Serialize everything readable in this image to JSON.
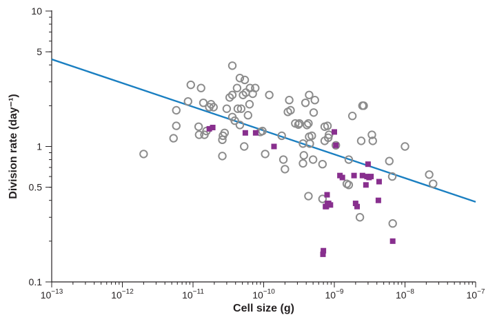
{
  "chart_data": {
    "type": "scatter",
    "title": "",
    "xlabel": "Cell size (g)",
    "ylabel": "Division rate (day⁻¹)",
    "xscale": "log",
    "yscale": "log",
    "xlim": [
      1e-13,
      1e-07
    ],
    "ylim": [
      0.1,
      10
    ],
    "grid": false,
    "legend": "none",
    "x_ticks": [
      {
        "value": 1e-13,
        "base": "10",
        "exp": "−13"
      },
      {
        "value": 1e-12,
        "base": "10",
        "exp": "−12"
      },
      {
        "value": 1e-11,
        "base": "10",
        "exp": "−11"
      },
      {
        "value": 1e-10,
        "base": "10",
        "exp": "−10"
      },
      {
        "value": 1e-09,
        "base": "10",
        "exp": "−9"
      },
      {
        "value": 1e-08,
        "base": "10",
        "exp": "−8"
      },
      {
        "value": 1e-07,
        "base": "10",
        "exp": "−7"
      }
    ],
    "y_ticks": [
      {
        "value": 0.1,
        "label": "0.1"
      },
      {
        "value": 0.5,
        "label": "0.5"
      },
      {
        "value": 1,
        "label": "1"
      },
      {
        "value": 5,
        "label": "5"
      },
      {
        "value": 10,
        "label": "10"
      }
    ],
    "series": [
      {
        "marker": "open-circle",
        "color": "#8c8c8c",
        "points": [
          [
            2e-12,
            0.88
          ],
          [
            5.3e-12,
            1.15
          ],
          [
            5.8e-12,
            1.42
          ],
          [
            5.8e-12,
            1.85
          ],
          [
            8.5e-12,
            2.15
          ],
          [
            9.3e-12,
            2.85
          ],
          [
            1.2e-11,
            1.4
          ],
          [
            1.22e-11,
            1.22
          ],
          [
            1.3e-11,
            2.7
          ],
          [
            1.4e-11,
            2.1
          ],
          [
            1.45e-11,
            1.22
          ],
          [
            1.55e-11,
            1.3
          ],
          [
            1.7e-11,
            1.95
          ],
          [
            1.8e-11,
            2.05
          ],
          [
            1.95e-11,
            1.95
          ],
          [
            2.6e-11,
            0.85
          ],
          [
            2.6e-11,
            1.12
          ],
          [
            2.65e-11,
            1.2
          ],
          [
            2.8e-11,
            1.26
          ],
          [
            3e-11,
            1.9
          ],
          [
            3.3e-11,
            2.3
          ],
          [
            3.6e-11,
            2.4
          ],
          [
            3.6e-11,
            1.65
          ],
          [
            3.6e-11,
            3.95
          ],
          [
            3.9e-11,
            1.55
          ],
          [
            4.2e-11,
            2.7
          ],
          [
            4.3e-11,
            1.9
          ],
          [
            4.6e-11,
            3.2
          ],
          [
            4.6e-11,
            1.44
          ],
          [
            4.8e-11,
            1.9
          ],
          [
            5.1e-11,
            2.4
          ],
          [
            5.3e-11,
            1.0
          ],
          [
            5.4e-11,
            3.1
          ],
          [
            5.6e-11,
            2.5
          ],
          [
            6e-11,
            1.7
          ],
          [
            6.3e-11,
            2.05
          ],
          [
            6.4e-11,
            2.7
          ],
          [
            7e-11,
            2.45
          ],
          [
            7.6e-11,
            2.7
          ],
          [
            9e-11,
            1.28
          ],
          [
            9.6e-11,
            1.3
          ],
          [
            1.05e-10,
            0.88
          ],
          [
            1.2e-10,
            2.4
          ],
          [
            1.8e-10,
            1.2
          ],
          [
            1.9e-10,
            0.8
          ],
          [
            2e-10,
            0.68
          ],
          [
            2.2e-10,
            1.8
          ],
          [
            2.3e-10,
            2.2
          ],
          [
            2.4e-10,
            1.85
          ],
          [
            2.8e-10,
            1.48
          ],
          [
            3.1e-10,
            1.45
          ],
          [
            3.2e-10,
            1.48
          ],
          [
            3.6e-10,
            1.05
          ],
          [
            3.6e-10,
            0.75
          ],
          [
            3.7e-10,
            0.86
          ],
          [
            3.9e-10,
            2.1
          ],
          [
            4.1e-10,
            1.44
          ],
          [
            4.3e-10,
            1.48
          ],
          [
            4.3e-10,
            0.43
          ],
          [
            4.4e-10,
            2.4
          ],
          [
            4.4e-10,
            1.18
          ],
          [
            4.5e-10,
            1.05
          ],
          [
            4.8e-10,
            1.2
          ],
          [
            5e-10,
            0.8
          ],
          [
            5.1e-10,
            1.78
          ],
          [
            5.3e-10,
            2.2
          ],
          [
            6.8e-10,
            0.74
          ],
          [
            6.8e-10,
            0.41
          ],
          [
            7.3e-10,
            1.1
          ],
          [
            7.3e-10,
            1.4
          ],
          [
            8e-10,
            1.42
          ],
          [
            8.2e-10,
            1.16
          ],
          [
            8.4e-10,
            1.22
          ],
          [
            1.05e-09,
            1.02
          ],
          [
            1.5e-09,
            0.53
          ],
          [
            1.6e-09,
            0.52
          ],
          [
            1.6e-09,
            0.8
          ],
          [
            1.8e-09,
            1.68
          ],
          [
            2.3e-09,
            0.3
          ],
          [
            2.4e-09,
            1.1
          ],
          [
            2.5e-09,
            2.0
          ],
          [
            2.6e-09,
            2.0
          ],
          [
            3.4e-09,
            1.22
          ],
          [
            3.5e-09,
            1.1
          ],
          [
            6e-09,
            0.78
          ],
          [
            6.6e-09,
            0.6
          ],
          [
            6.7e-09,
            0.27
          ],
          [
            1e-08,
            1.0
          ],
          [
            2.2e-08,
            0.62
          ],
          [
            2.5e-08,
            0.53
          ]
        ]
      },
      {
        "marker": "filled-square",
        "color": "#882f8e",
        "points": [
          [
            1.7e-11,
            1.35
          ],
          [
            1.9e-11,
            1.38
          ],
          [
            5.5e-11,
            1.26
          ],
          [
            7.7e-11,
            1.26
          ],
          [
            1.4e-10,
            1.0
          ],
          [
            6.9e-10,
            0.16
          ],
          [
            7e-10,
            0.17
          ],
          [
            7.5e-10,
            0.36
          ],
          [
            7.7e-10,
            0.36
          ],
          [
            7.9e-10,
            0.44
          ],
          [
            8e-10,
            0.38
          ],
          [
            8.3e-10,
            0.38
          ],
          [
            8.8e-10,
            0.37
          ],
          [
            1e-09,
            1.28
          ],
          [
            1.05e-09,
            1.02
          ],
          [
            1.2e-09,
            0.61
          ],
          [
            1.3e-09,
            0.59
          ],
          [
            1.9e-09,
            0.61
          ],
          [
            2e-09,
            0.38
          ],
          [
            2.1e-09,
            0.36
          ],
          [
            2.5e-09,
            0.61
          ],
          [
            2.8e-09,
            0.52
          ],
          [
            2.9e-09,
            0.6
          ],
          [
            3e-09,
            0.74
          ],
          [
            3.1e-09,
            0.59
          ],
          [
            3.3e-09,
            0.6
          ],
          [
            4.2e-09,
            0.4
          ],
          [
            4.3e-09,
            0.55
          ],
          [
            6.7e-09,
            0.2
          ]
        ]
      }
    ],
    "trend_line": {
      "color": "#1a7fc1",
      "points": [
        [
          1e-13,
          4.4
        ],
        [
          1e-07,
          0.39
        ]
      ]
    }
  }
}
